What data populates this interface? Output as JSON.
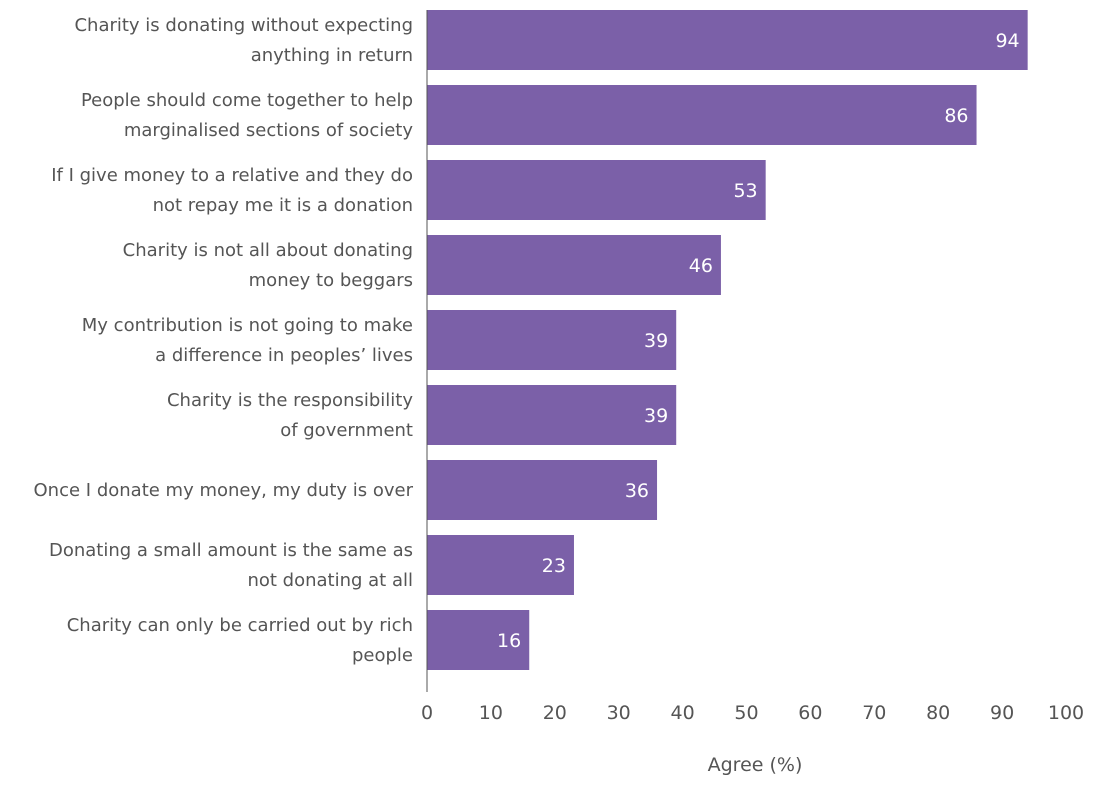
{
  "chart_data": {
    "type": "bar",
    "orientation": "horizontal",
    "categories": [
      [
        "Charity is donating without expecting",
        "anything in return"
      ],
      [
        "People should come together to help",
        "marginalised sections of society"
      ],
      [
        "If I give money to a relative and they do",
        "not repay me it is a donation"
      ],
      [
        "Charity is not all about donating",
        "money to beggars"
      ],
      [
        "My contribution is not going to make",
        "a difference in peoples’ lives"
      ],
      [
        "Charity is the responsibility",
        "of government"
      ],
      [
        "Once I donate my money, my duty is over"
      ],
      [
        "Donating a small amount is the same as",
        "not donating at all"
      ],
      [
        "Charity can only be carried out by rich",
        "people"
      ]
    ],
    "values": [
      94,
      86,
      53,
      46,
      39,
      39,
      36,
      23,
      16
    ],
    "value_labels": [
      "94",
      "86",
      "53",
      "46",
      "39",
      "39",
      "36",
      "23",
      "16"
    ],
    "xlim": [
      0,
      100
    ],
    "xticks": [
      0,
      10,
      20,
      30,
      40,
      50,
      60,
      70,
      80,
      90,
      100
    ],
    "xtick_labels": [
      "0",
      "10",
      "20",
      "30",
      "40",
      "50",
      "60",
      "70",
      "80",
      "90",
      "100"
    ],
    "xlabel": "Agree (%)",
    "ylabel": "",
    "title": "",
    "grid": false,
    "legend": "none",
    "bar_color": "#7B60A8"
  }
}
